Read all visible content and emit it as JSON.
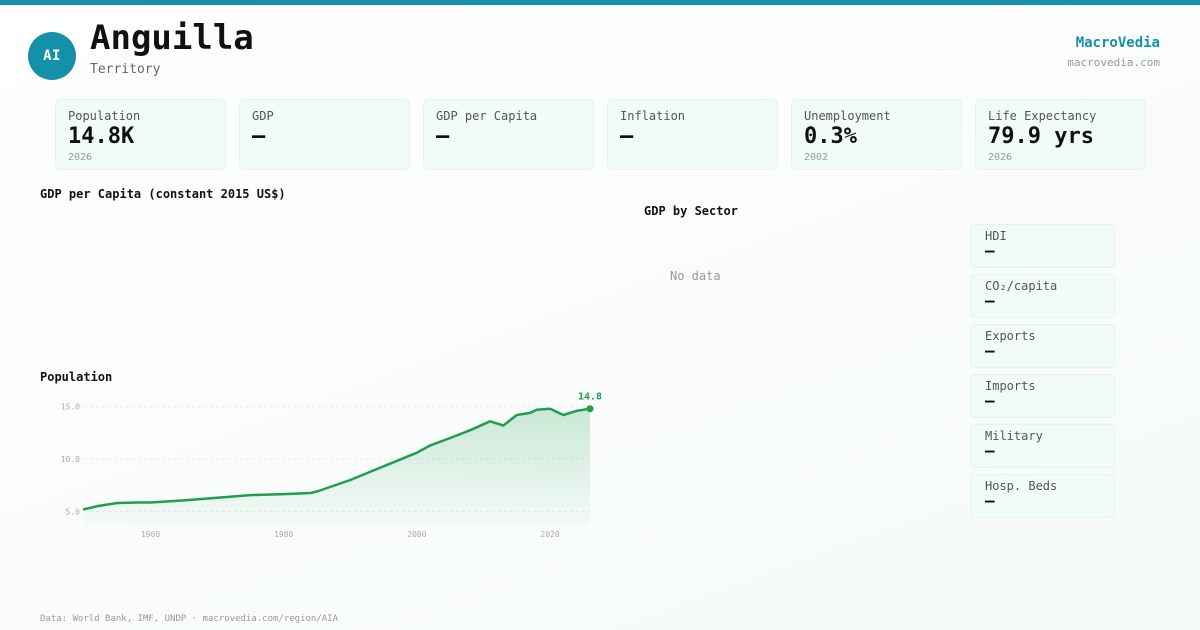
{
  "header": {
    "avatar": "AI",
    "title": "Anguilla",
    "subtitle": "Territory",
    "brand": "MacroVedia",
    "brand_url": "macrovedia.com"
  },
  "stats": [
    {
      "label": "Population",
      "value": "14.8K",
      "year": "2026"
    },
    {
      "label": "GDP",
      "value": "—",
      "year": ""
    },
    {
      "label": "GDP per Capita",
      "value": "—",
      "year": ""
    },
    {
      "label": "Inflation",
      "value": "—",
      "year": ""
    },
    {
      "label": "Unemployment",
      "value": "0.3%",
      "year": "2002"
    },
    {
      "label": "Life Expectancy",
      "value": "79.9 yrs",
      "year": "2026"
    }
  ],
  "sections": {
    "gdp_per_capita": "GDP per Capita (constant 2015 US$)",
    "population": "Population",
    "gdp_by_sector": "GDP by Sector",
    "no_data": "No data"
  },
  "side_stats": [
    {
      "label": "HDI",
      "value": "—"
    },
    {
      "label": "CO₂/capita",
      "value": "—"
    },
    {
      "label": "Exports",
      "value": "—"
    },
    {
      "label": "Imports",
      "value": "—"
    },
    {
      "label": "Military",
      "value": "—"
    },
    {
      "label": "Hosp. Beds",
      "value": "—"
    }
  ],
  "footer": "Data: World Bank, IMF, UNDP · macrovedia.com/region/AIA",
  "colors": {
    "accent": "#1490a8",
    "line": "#1e9e4f"
  },
  "chart_data": {
    "type": "area",
    "title": "Population",
    "x": [
      1950,
      1952,
      1955,
      1958,
      1960,
      1965,
      1970,
      1975,
      1980,
      1984,
      1985,
      1990,
      1995,
      2000,
      2002,
      2005,
      2008,
      2011,
      2013,
      2015,
      2017,
      2018,
      2020,
      2022,
      2024,
      2026
    ],
    "y": [
      5.2,
      5.5,
      5.8,
      5.85,
      5.85,
      6.05,
      6.3,
      6.55,
      6.65,
      6.75,
      6.9,
      8.0,
      9.3,
      10.6,
      11.3,
      12.0,
      12.75,
      13.6,
      13.2,
      14.2,
      14.4,
      14.7,
      14.8,
      14.2,
      14.6,
      14.8
    ],
    "yticks": [
      5.0,
      10.0,
      15.0
    ],
    "ytick_labels": [
      "5.0",
      "10.0",
      "15.0"
    ],
    "xticks": [
      1960,
      1980,
      2000,
      2020
    ],
    "xtick_labels": [
      "1960",
      "1980",
      "2000",
      "2020"
    ],
    "last_label": "14.8",
    "xlim": [
      1950,
      2026
    ],
    "ylim": [
      3.7,
      16.3
    ],
    "grid": true
  }
}
